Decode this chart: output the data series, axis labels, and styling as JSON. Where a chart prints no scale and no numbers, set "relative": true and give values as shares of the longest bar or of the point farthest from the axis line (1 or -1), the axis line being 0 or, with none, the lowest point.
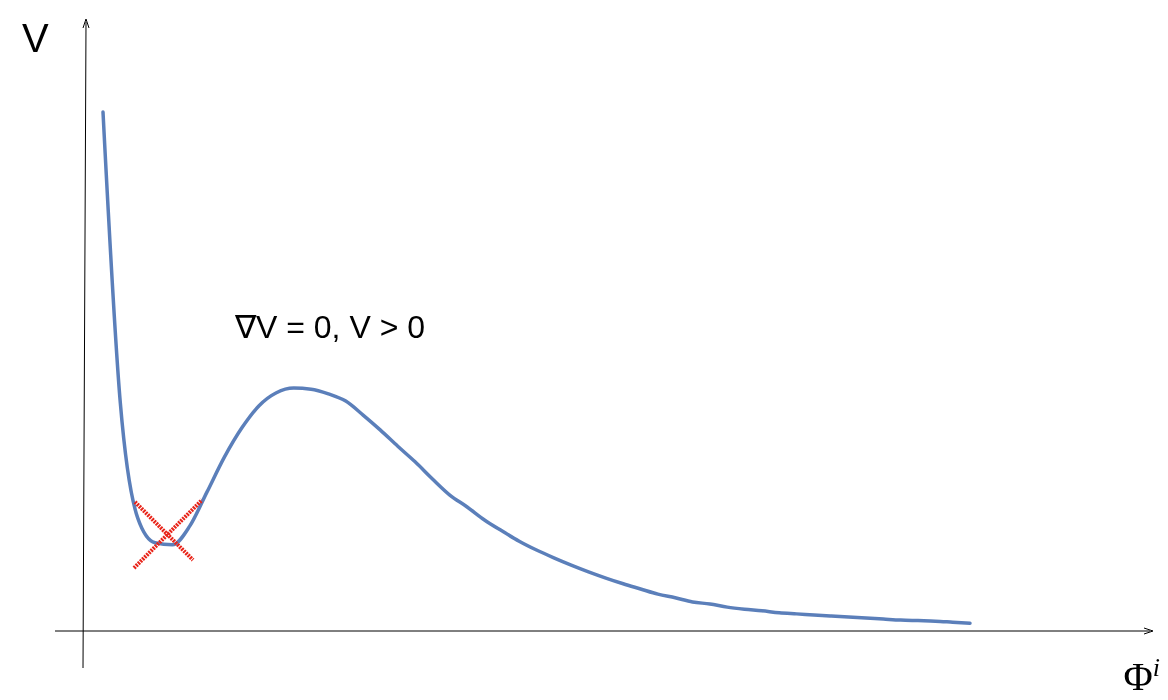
{
  "chart_data": {
    "type": "line",
    "relative": true,
    "xlabel": "Φ$^{i}$",
    "ylabel": "V",
    "annotations": [
      "∇V = 0, V > 0"
    ],
    "categories": [
      null,
      null,
      null,
      null,
      null,
      null,
      null,
      null,
      null,
      null,
      null,
      null,
      null,
      null,
      null,
      null,
      null,
      null,
      null,
      null,
      null,
      null,
      null,
      null,
      null,
      null,
      null,
      null,
      null,
      null,
      null,
      null,
      null,
      null,
      null,
      null,
      null,
      null,
      null,
      null,
      null,
      null,
      null,
      null,
      null,
      null,
      null,
      null,
      null,
      null,
      null
    ],
    "series": [
      {
        "color": "#5b7fba",
        "values": [
          1,
          0.439,
          0.218,
          0.17,
          0.166,
          0.202,
          0.268,
          0.335,
          0.391,
          0.434,
          0.459,
          0.468,
          0.466,
          0.457,
          0.443,
          0.416,
          0.387,
          0.356,
          0.326,
          0.293,
          0.262,
          0.239,
          0.214,
          0.193,
          0.173,
          0.156,
          0.141,
          0.127,
          0.114,
          0.102,
          0.091,
          0.081,
          0.071,
          0.064,
          0.056,
          0.052,
          0.046,
          0.042,
          0.039,
          0.035,
          0.033,
          0.031,
          0.029,
          0.027,
          0.025,
          0.023,
          0.021,
          0.02,
          0.019,
          0.017,
          0.015
        ]
      }
    ],
    "grid": false,
    "marker": "none",
    "line_style": "solid"
  }
}
